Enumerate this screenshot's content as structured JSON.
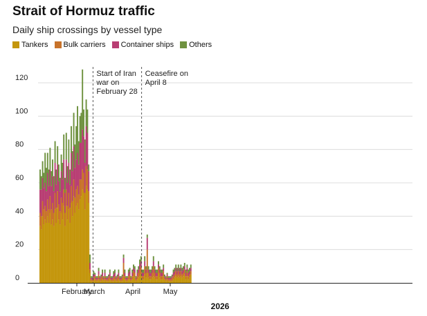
{
  "chart_data": {
    "type": "bar",
    "stacked": true,
    "title": "Strait of Hormuz traffic",
    "subtitle": "Daily ship crossings by vessel type",
    "xlabel": "2026",
    "ylabel": "",
    "ylim": [
      0,
      130
    ],
    "yticks": [
      0,
      20,
      40,
      60,
      80,
      100,
      120
    ],
    "grid": true,
    "legend_position": "top-left",
    "x_start": "2026-01-16",
    "month_ticks": [
      {
        "label": "February",
        "date": "2026-02-15"
      },
      {
        "label": "March",
        "date": "2026-03-01"
      },
      {
        "label": "April",
        "date": "2026-04-01"
      },
      {
        "label": "May",
        "date": "2026-05-01"
      }
    ],
    "annotations": [
      {
        "date": "2026-02-28",
        "lines": [
          "Start of Iran",
          "war on",
          "February 28"
        ]
      },
      {
        "date": "2026-04-08",
        "lines": [
          "Ceasefire on",
          "April 8"
        ]
      }
    ],
    "series": [
      {
        "name": "Tankers",
        "color": "#c4960c",
        "values": [
          34,
          32,
          40,
          35,
          38,
          36,
          40,
          36,
          42,
          35,
          38,
          34,
          44,
          36,
          45,
          38,
          35,
          42,
          38,
          46,
          34,
          46,
          38,
          44,
          36,
          48,
          40,
          52,
          42,
          46,
          48,
          44,
          50,
          52,
          56,
          54,
          44,
          58,
          56,
          48,
          6,
          1,
          1,
          1,
          2,
          1,
          1,
          2,
          1,
          1,
          2,
          1,
          2,
          1,
          1,
          1,
          2,
          1,
          1,
          1,
          2,
          1,
          1,
          2,
          1,
          1,
          1,
          4,
          2,
          1,
          1,
          2,
          2,
          1,
          2,
          4,
          3,
          1,
          2,
          3,
          4,
          5,
          2,
          2,
          5,
          3,
          6,
          3,
          2,
          2,
          3,
          4,
          3,
          2,
          2,
          6,
          3,
          2,
          2,
          4,
          2,
          1,
          2,
          1,
          1,
          1,
          1,
          2,
          3,
          4,
          3,
          4,
          3,
          4,
          3,
          4,
          5,
          2,
          4,
          2,
          3,
          5
        ]
      },
      {
        "name": "Bulk carriers",
        "color": "#c8732a",
        "values": [
          8,
          8,
          9,
          9,
          8,
          7,
          10,
          8,
          10,
          9,
          10,
          8,
          10,
          9,
          10,
          9,
          8,
          9,
          10,
          10,
          8,
          10,
          8,
          10,
          9,
          10,
          9,
          10,
          9,
          10,
          10,
          9,
          12,
          10,
          12,
          12,
          10,
          12,
          12,
          7,
          2,
          1,
          1,
          2,
          2,
          1,
          1,
          3,
          1,
          2,
          2,
          1,
          2,
          1,
          1,
          2,
          2,
          1,
          1,
          2,
          2,
          1,
          2,
          2,
          1,
          1,
          2,
          8,
          2,
          1,
          1,
          2,
          3,
          1,
          2,
          3,
          3,
          1,
          2,
          3,
          4,
          5,
          2,
          2,
          5,
          3,
          14,
          3,
          2,
          2,
          3,
          6,
          3,
          2,
          2,
          3,
          3,
          2,
          2,
          3,
          1,
          1,
          2,
          1,
          1,
          1,
          2,
          2,
          2,
          3,
          2,
          3,
          2,
          3,
          2,
          2,
          3,
          2,
          3,
          2,
          2,
          2
        ]
      },
      {
        "name": "Container ships",
        "color": "#b83e73",
        "values": [
          14,
          16,
          14,
          13,
          14,
          12,
          16,
          14,
          16,
          14,
          16,
          13,
          18,
          14,
          16,
          14,
          12,
          16,
          14,
          18,
          12,
          18,
          14,
          18,
          14,
          20,
          18,
          20,
          18,
          18,
          20,
          18,
          22,
          22,
          24,
          22,
          18,
          24,
          22,
          12,
          4,
          1,
          1,
          2,
          1,
          1,
          1,
          2,
          1,
          1,
          2,
          1,
          2,
          1,
          1,
          1,
          2,
          1,
          1,
          2,
          2,
          1,
          1,
          2,
          1,
          1,
          1,
          3,
          2,
          1,
          1,
          2,
          2,
          1,
          2,
          2,
          2,
          1,
          2,
          2,
          3,
          3,
          2,
          2,
          3,
          2,
          7,
          2,
          2,
          2,
          2,
          3,
          2,
          2,
          2,
          2,
          2,
          2,
          2,
          2,
          1,
          1,
          1,
          1,
          1,
          1,
          1,
          2,
          2,
          2,
          2,
          2,
          2,
          2,
          2,
          2,
          2,
          2,
          2,
          2,
          2,
          2
        ]
      },
      {
        "name": "Others",
        "color": "#6f9240",
        "values": [
          12,
          8,
          10,
          9,
          18,
          14,
          12,
          10,
          13,
          9,
          10,
          9,
          13,
          9,
          11,
          10,
          8,
          10,
          10,
          15,
          9,
          16,
          10,
          14,
          9,
          16,
          12,
          20,
          14,
          20,
          28,
          14,
          16,
          18,
          36,
          16,
          14,
          16,
          14,
          4,
          5,
          1,
          1,
          2,
          1,
          1,
          1,
          2,
          1,
          1,
          2,
          1,
          2,
          1,
          1,
          1,
          2,
          1,
          1,
          2,
          2,
          1,
          1,
          2,
          1,
          1,
          1,
          2,
          2,
          1,
          1,
          2,
          2,
          1,
          2,
          2,
          2,
          1,
          2,
          2,
          3,
          3,
          2,
          2,
          3,
          2,
          2,
          2,
          2,
          2,
          2,
          3,
          2,
          2,
          2,
          2,
          2,
          2,
          2,
          2,
          1,
          1,
          1,
          1,
          1,
          1,
          1,
          2,
          2,
          2,
          2,
          2,
          2,
          2,
          2,
          2,
          2,
          2,
          2,
          2,
          2,
          2
        ]
      }
    ]
  }
}
